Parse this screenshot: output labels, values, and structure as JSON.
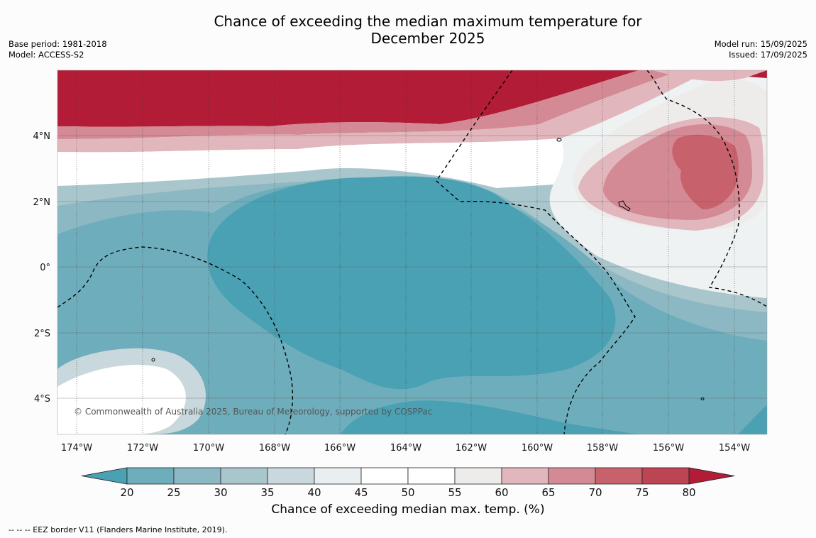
{
  "title": "Chance of exceeding the median maximum temperature for December 2025",
  "meta_left": [
    "Base period: 1981-2018",
    "Model: ACCESS-S2"
  ],
  "meta_right": [
    "Model run: 15/09/2025",
    "Issued: 17/09/2025"
  ],
  "copyright": "© Commonwealth of Australia 2025, Bureau of Meteorology, supported by COSPPac",
  "lon_labels": [
    "174°W",
    "172°W",
    "170°W",
    "168°W",
    "166°W",
    "164°W",
    "162°W",
    "160°W",
    "158°W",
    "156°W",
    "154°W"
  ],
  "lat_labels": [
    "4°N",
    "2°N",
    "0°",
    "2°S",
    "4°S"
  ],
  "colorbar": {
    "ticks": [
      "20",
      "25",
      "30",
      "35",
      "40",
      "45",
      "50",
      "55",
      "60",
      "65",
      "70",
      "75",
      "80"
    ],
    "colors": [
      "#4aa1b4",
      "#6eadbb",
      "#8cb8c3",
      "#a9c6cc",
      "#c8d8dc",
      "#e9eff0",
      "#ffffff",
      "#ffffff",
      "#eeeceb",
      "#e1b6bc",
      "#d48a94",
      "#c7616c",
      "#bc4453",
      "#b21c37"
    ],
    "label": "Chance of exceeding median max. temp. (%)"
  },
  "legend_line": "--  --  -- EEZ border V11 (Flanders Marine Institute, 2019)."
}
